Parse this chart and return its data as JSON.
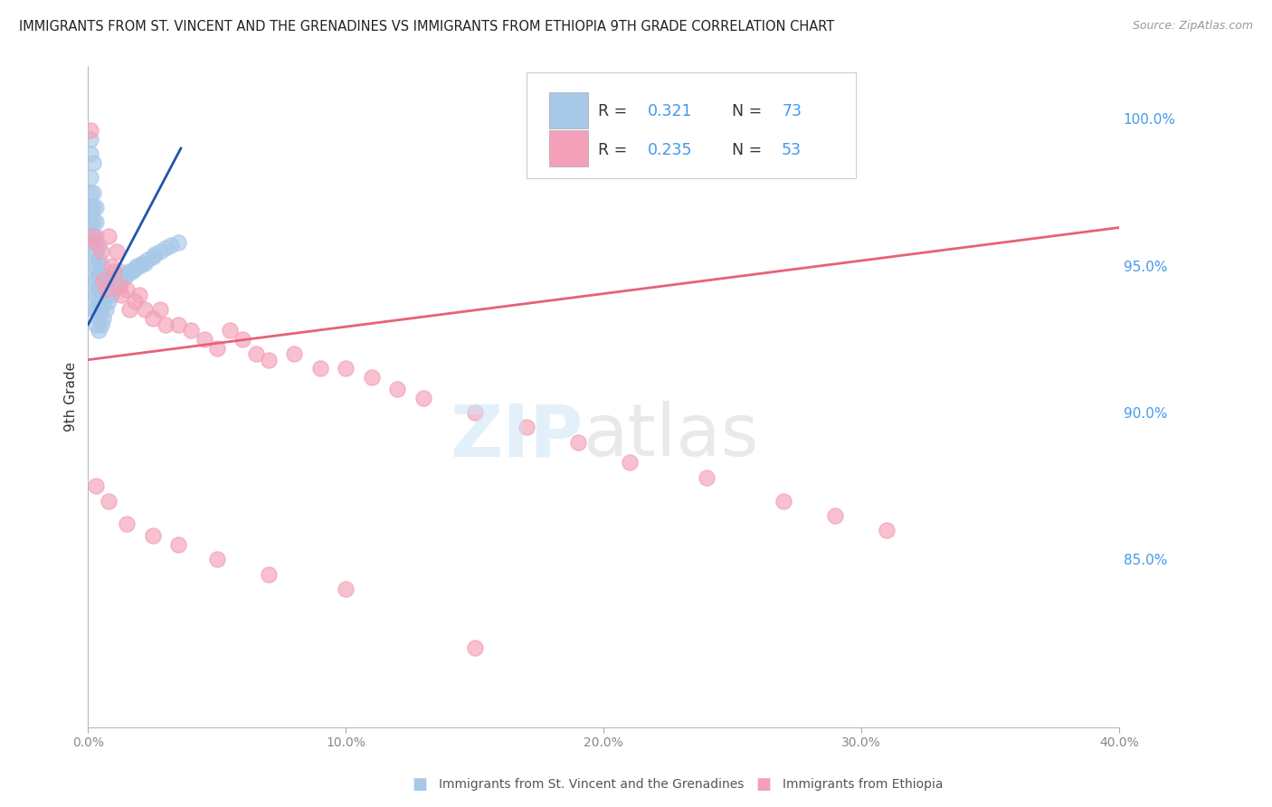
{
  "title": "IMMIGRANTS FROM ST. VINCENT AND THE GRENADINES VS IMMIGRANTS FROM ETHIOPIA 9TH GRADE CORRELATION CHART",
  "source": "Source: ZipAtlas.com",
  "ylabel": "9th Grade",
  "xlim": [
    0.0,
    0.4
  ],
  "ylim": [
    0.793,
    1.018
  ],
  "yticks": [
    0.85,
    0.9,
    0.95,
    1.0
  ],
  "xticks": [
    0.0,
    0.1,
    0.2,
    0.3,
    0.4
  ],
  "xtick_labels": [
    "0.0%",
    "10.0%",
    "20.0%",
    "30.0%",
    "40.0%"
  ],
  "ytick_labels": [
    "85.0%",
    "90.0%",
    "95.0%",
    "100.0%"
  ],
  "legend_r1": "R = ",
  "legend_v1": "0.321",
  "legend_n1_label": "N = ",
  "legend_n1": "73",
  "legend_r2": "R = ",
  "legend_v2": "0.235",
  "legend_n2_label": "N = ",
  "legend_n2": "53",
  "blue_color": "#a8c8e8",
  "pink_color": "#f4a0b8",
  "trendline_blue_color": "#2255aa",
  "trendline_pink_color": "#e8607a",
  "r_value_color": "#4499ee",
  "n_value_color": "#4499ee",
  "label_color": "#333333",
  "ytick_color": "#4499ee",
  "xtick_color": "#888888",
  "grid_color": "#cccccc",
  "blue_trendline_x": [
    0.0,
    0.036
  ],
  "blue_trendline_y": [
    0.93,
    0.99
  ],
  "pink_trendline_x": [
    0.0,
    0.4
  ],
  "pink_trendline_y": [
    0.918,
    0.963
  ],
  "blue_x": [
    0.001,
    0.001,
    0.001,
    0.001,
    0.001,
    0.002,
    0.002,
    0.002,
    0.002,
    0.002,
    0.002,
    0.002,
    0.002,
    0.002,
    0.003,
    0.003,
    0.003,
    0.003,
    0.003,
    0.003,
    0.003,
    0.003,
    0.003,
    0.004,
    0.004,
    0.004,
    0.004,
    0.004,
    0.004,
    0.004,
    0.005,
    0.005,
    0.005,
    0.005,
    0.005,
    0.006,
    0.006,
    0.006,
    0.006,
    0.007,
    0.007,
    0.007,
    0.008,
    0.008,
    0.008,
    0.009,
    0.009,
    0.01,
    0.01,
    0.011,
    0.011,
    0.012,
    0.012,
    0.013,
    0.014,
    0.015,
    0.016,
    0.017,
    0.018,
    0.019,
    0.02,
    0.021,
    0.022,
    0.023,
    0.025,
    0.026,
    0.028,
    0.03,
    0.032,
    0.035,
    0.001,
    0.001,
    0.002
  ],
  "blue_y": [
    0.96,
    0.965,
    0.97,
    0.975,
    0.98,
    0.935,
    0.94,
    0.945,
    0.95,
    0.955,
    0.96,
    0.965,
    0.97,
    0.975,
    0.93,
    0.935,
    0.94,
    0.945,
    0.95,
    0.955,
    0.96,
    0.965,
    0.97,
    0.928,
    0.932,
    0.937,
    0.942,
    0.947,
    0.952,
    0.957,
    0.93,
    0.935,
    0.94,
    0.945,
    0.95,
    0.932,
    0.937,
    0.942,
    0.947,
    0.935,
    0.94,
    0.945,
    0.938,
    0.942,
    0.946,
    0.94,
    0.944,
    0.942,
    0.946,
    0.943,
    0.947,
    0.944,
    0.948,
    0.945,
    0.946,
    0.947,
    0.948,
    0.948,
    0.949,
    0.95,
    0.95,
    0.951,
    0.951,
    0.952,
    0.953,
    0.954,
    0.955,
    0.956,
    0.957,
    0.958,
    0.988,
    0.993,
    0.985
  ],
  "pink_x": [
    0.001,
    0.002,
    0.003,
    0.005,
    0.006,
    0.007,
    0.008,
    0.009,
    0.01,
    0.011,
    0.012,
    0.013,
    0.015,
    0.016,
    0.018,
    0.02,
    0.022,
    0.025,
    0.028,
    0.03,
    0.035,
    0.04,
    0.045,
    0.05,
    0.055,
    0.06,
    0.065,
    0.07,
    0.08,
    0.09,
    0.1,
    0.11,
    0.12,
    0.13,
    0.15,
    0.17,
    0.19,
    0.21,
    0.24,
    0.27,
    0.29,
    0.31,
    0.003,
    0.008,
    0.015,
    0.025,
    0.035,
    0.05,
    0.07,
    0.1,
    0.27,
    0.29,
    0.15
  ],
  "pink_y": [
    0.996,
    0.96,
    0.958,
    0.955,
    0.945,
    0.942,
    0.96,
    0.95,
    0.948,
    0.955,
    0.943,
    0.94,
    0.942,
    0.935,
    0.938,
    0.94,
    0.935,
    0.932,
    0.935,
    0.93,
    0.93,
    0.928,
    0.925,
    0.922,
    0.928,
    0.925,
    0.92,
    0.918,
    0.92,
    0.915,
    0.915,
    0.912,
    0.908,
    0.905,
    0.9,
    0.895,
    0.89,
    0.883,
    0.878,
    0.87,
    0.865,
    0.86,
    0.875,
    0.87,
    0.862,
    0.858,
    0.855,
    0.85,
    0.845,
    0.84,
    0.997,
    0.997,
    0.82
  ]
}
